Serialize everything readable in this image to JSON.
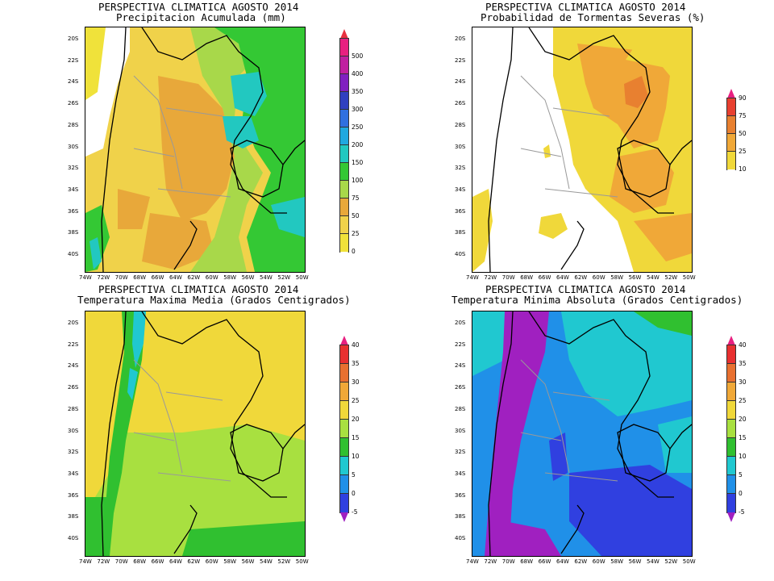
{
  "panels": [
    {
      "id": "precip",
      "title1": "PERSPECTIVA CLIMATICA AGOSTO 2014",
      "title2": "Precipitacion Acumulada (mm)",
      "legend": {
        "labels": [
          "0",
          "25",
          "50",
          "75",
          "100",
          "150",
          "200",
          "250",
          "300",
          "350",
          "400",
          "500"
        ],
        "colors": [
          "#f0e23a",
          "#f0d24a",
          "#e8a83a",
          "#a8d84a",
          "#34c834",
          "#22c8c0",
          "#20a8e0",
          "#3070e0",
          "#3040c0",
          "#8020c0",
          "#c020a0",
          "#e82080"
        ],
        "top_color": "#e83040",
        "bottom_color": "#ffffff"
      }
    },
    {
      "id": "storms",
      "title1": "PERSPECTIVA CLIMATICA AGOSTO 2014",
      "title2": "Probabilidad de Tormentas Severas (%)",
      "legend": {
        "labels": [
          "10",
          "25",
          "50",
          "75",
          "90"
        ],
        "colors": [
          "#f0d83a",
          "#f0a838",
          "#e88030",
          "#e84030"
        ],
        "top_color": "#e82080",
        "bottom_color": "#ffffff"
      }
    },
    {
      "id": "tmax",
      "title1": "PERSPECTIVA CLIMATICA AGOSTO 2014",
      "title2": "Temperatura Maxima Media (Grados Centigrados)",
      "legend": {
        "labels": [
          "-5",
          "0",
          "5",
          "10",
          "15",
          "20",
          "25",
          "30",
          "35",
          "40"
        ],
        "colors": [
          "#3040e0",
          "#2090e8",
          "#20c8d0",
          "#30c030",
          "#a8e040",
          "#f0d83a",
          "#f0a838",
          "#e87030",
          "#e83030"
        ],
        "top_color": "#e82080",
        "bottom_color": "#a020c0"
      }
    },
    {
      "id": "tmin",
      "title1": "PERSPECTIVA CLIMATICA AGOSTO 2014",
      "title2": "Temperatura Minima Absoluta (Grados Centigrados)",
      "legend": {
        "labels": [
          "-5",
          "0",
          "5",
          "10",
          "15",
          "20",
          "25",
          "30",
          "35",
          "40"
        ],
        "colors": [
          "#3040e0",
          "#2090e8",
          "#20c8d0",
          "#30c030",
          "#a8e040",
          "#f0d83a",
          "#f0a838",
          "#e87030",
          "#e83030"
        ],
        "top_color": "#e82080",
        "bottom_color": "#a020c0"
      }
    }
  ],
  "axes": {
    "lat_labels": [
      "20S",
      "22S",
      "24S",
      "26S",
      "28S",
      "30S",
      "32S",
      "34S",
      "36S",
      "38S",
      "40S"
    ],
    "lon_labels": [
      "74W",
      "72W",
      "70W",
      "68W",
      "66W",
      "64W",
      "62W",
      "60W",
      "58W",
      "56W",
      "54W",
      "52W",
      "50W"
    ]
  }
}
